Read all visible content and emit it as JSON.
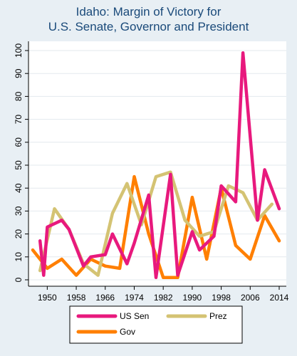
{
  "chart_data": {
    "type": "line",
    "title": "Idaho: Margin of Victory for",
    "subtitle": "U.S. Senate, Governor and President",
    "xlabel": "",
    "ylabel": "",
    "xlim": [
      1946,
      2016
    ],
    "ylim": [
      0,
      100
    ],
    "x_ticks": [
      1950,
      1958,
      1966,
      1974,
      1982,
      1990,
      1998,
      2006,
      2014
    ],
    "y_ticks": [
      0,
      10,
      20,
      30,
      40,
      50,
      60,
      70,
      80,
      90,
      100
    ],
    "grid": "horizontal",
    "legend_position": "bottom",
    "series": [
      {
        "name": "US Sen",
        "color": "#e8197d",
        "points": [
          [
            1948,
            17
          ],
          [
            1949,
            2
          ],
          [
            1950,
            23
          ],
          [
            1954,
            26
          ],
          [
            1956,
            22
          ],
          [
            1960,
            6
          ],
          [
            1962,
            10
          ],
          [
            1966,
            11
          ],
          [
            1968,
            20
          ],
          [
            1972,
            7
          ],
          [
            1974,
            16
          ],
          [
            1978,
            37
          ],
          [
            1980,
            1
          ],
          [
            1984,
            46
          ],
          [
            1986,
            2
          ],
          [
            1990,
            21
          ],
          [
            1992,
            13
          ],
          [
            1996,
            19
          ],
          [
            1998,
            41
          ],
          [
            2002,
            34
          ],
          [
            2004,
            99
          ],
          [
            2008,
            26
          ],
          [
            2010,
            48
          ],
          [
            2014,
            31
          ]
        ]
      },
      {
        "name": "Prez",
        "color": "#d4c373",
        "points": [
          [
            1948,
            4
          ],
          [
            1952,
            31
          ],
          [
            1956,
            22
          ],
          [
            1960,
            7
          ],
          [
            1964,
            2
          ],
          [
            1968,
            29
          ],
          [
            1972,
            42
          ],
          [
            1976,
            24
          ],
          [
            1980,
            45
          ],
          [
            1984,
            47
          ],
          [
            1988,
            26
          ],
          [
            1992,
            19
          ],
          [
            1996,
            21
          ],
          [
            2000,
            41
          ],
          [
            2004,
            38
          ],
          [
            2008,
            26
          ],
          [
            2012,
            33
          ]
        ]
      },
      {
        "name": "Gov",
        "color": "#ff7f00",
        "points": [
          [
            1946,
            13
          ],
          [
            1950,
            5
          ],
          [
            1954,
            9
          ],
          [
            1958,
            2
          ],
          [
            1962,
            9
          ],
          [
            1966,
            6
          ],
          [
            1970,
            5
          ],
          [
            1974,
            45
          ],
          [
            1978,
            20
          ],
          [
            1982,
            1
          ],
          [
            1986,
            1
          ],
          [
            1990,
            36
          ],
          [
            1994,
            9
          ],
          [
            1998,
            40
          ],
          [
            2002,
            15
          ],
          [
            2006,
            9
          ],
          [
            2010,
            28
          ],
          [
            2014,
            17
          ]
        ]
      }
    ]
  }
}
